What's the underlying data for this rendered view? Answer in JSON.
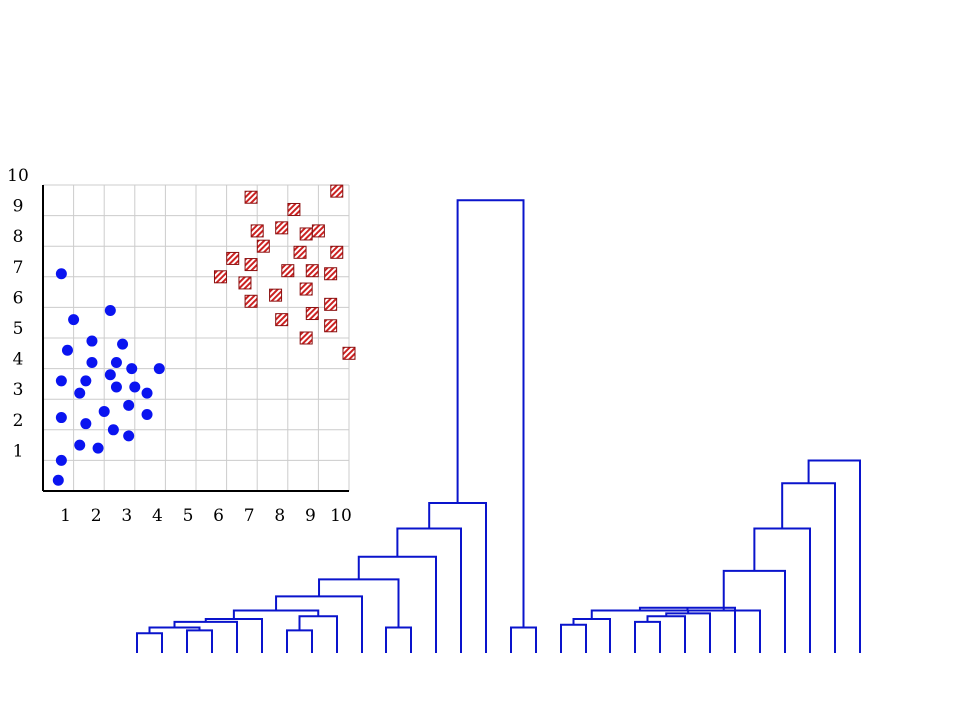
{
  "chart_data": [
    {
      "type": "scatter",
      "title": "",
      "xlabel": "",
      "ylabel": "",
      "xlim": [
        0,
        10
      ],
      "ylim": [
        0,
        10
      ],
      "grid": true,
      "x_ticks": [
        "1",
        "2",
        "3",
        "4",
        "5",
        "6",
        "7",
        "8",
        "9",
        "10"
      ],
      "y_ticks": [
        "1",
        "2",
        "3",
        "4",
        "5",
        "6",
        "7",
        "8",
        "9",
        "10"
      ],
      "series": [
        {
          "marker": "circle",
          "color": "#0a14f0",
          "points": [
            [
              0.5,
              0.35
            ],
            [
              0.6,
              1.0
            ],
            [
              1.2,
              1.5
            ],
            [
              1.8,
              1.4
            ],
            [
              0.6,
              2.4
            ],
            [
              1.4,
              2.2
            ],
            [
              2.0,
              2.6
            ],
            [
              2.3,
              2.0
            ],
            [
              2.8,
              1.8
            ],
            [
              0.6,
              3.6
            ],
            [
              1.2,
              3.2
            ],
            [
              1.4,
              3.6
            ],
            [
              1.6,
              4.2
            ],
            [
              0.8,
              4.6
            ],
            [
              1.6,
              4.9
            ],
            [
              2.2,
              3.8
            ],
            [
              2.4,
              3.4
            ],
            [
              2.4,
              4.2
            ],
            [
              2.8,
              2.8
            ],
            [
              3.0,
              3.4
            ],
            [
              3.4,
              3.2
            ],
            [
              3.4,
              2.5
            ],
            [
              2.9,
              4.0
            ],
            [
              3.8,
              4.0
            ],
            [
              2.6,
              4.8
            ],
            [
              1.0,
              5.6
            ],
            [
              2.2,
              5.9
            ],
            [
              0.6,
              7.1
            ]
          ]
        },
        {
          "marker": "hatched-square",
          "color": "#cc2222",
          "points": [
            [
              5.8,
              7.0
            ],
            [
              6.2,
              7.6
            ],
            [
              6.6,
              6.8
            ],
            [
              6.8,
              7.4
            ],
            [
              7.2,
              8.0
            ],
            [
              6.8,
              6.2
            ],
            [
              7.6,
              6.4
            ],
            [
              7.8,
              5.6
            ],
            [
              7.0,
              8.5
            ],
            [
              7.8,
              8.6
            ],
            [
              8.2,
              9.2
            ],
            [
              8.4,
              7.8
            ],
            [
              8.0,
              7.2
            ],
            [
              8.6,
              8.4
            ],
            [
              9.0,
              8.5
            ],
            [
              8.6,
              6.6
            ],
            [
              8.8,
              7.2
            ],
            [
              8.8,
              5.8
            ],
            [
              8.6,
              5.0
            ],
            [
              9.4,
              6.1
            ],
            [
              9.4,
              5.4
            ],
            [
              9.4,
              7.1
            ],
            [
              9.6,
              7.8
            ],
            [
              10.0,
              4.5
            ],
            [
              6.8,
              9.6
            ],
            [
              9.6,
              9.8
            ]
          ]
        }
      ]
    },
    {
      "type": "dendrogram",
      "title": "",
      "color": "#0a14cc",
      "leaves": 31,
      "heights": {
        "root": 8.0,
        "left": 1.8,
        "right": 1.95
      },
      "merges": [
        [
          0,
          1,
          0.35
        ],
        [
          2,
          3,
          0.4
        ],
        [
          31,
          32,
          0.45
        ],
        [
          4,
          33,
          0.55
        ],
        [
          5,
          34,
          0.6
        ],
        [
          6,
          7,
          0.4
        ],
        [
          8,
          36,
          0.65
        ],
        [
          37,
          35,
          0.75
        ],
        [
          38,
          9,
          1.0
        ],
        [
          10,
          11,
          0.45
        ],
        [
          40,
          39,
          1.3
        ],
        [
          41,
          12,
          1.7
        ],
        [
          42,
          13,
          2.2
        ],
        [
          43,
          14,
          2.65
        ],
        [
          15,
          16,
          0.45
        ],
        [
          17,
          18,
          0.5
        ],
        [
          46,
          19,
          0.6
        ],
        [
          20,
          21,
          0.55
        ],
        [
          22,
          48,
          0.65
        ],
        [
          23,
          49,
          0.7
        ],
        [
          47,
          50,
          0.75
        ],
        [
          51,
          24,
          0.8
        ],
        [
          52,
          25,
          0.75
        ],
        [
          53,
          26,
          1.45
        ],
        [
          54,
          27,
          2.2
        ],
        [
          55,
          28,
          3.0
        ],
        [
          56,
          29,
          3.4
        ],
        [
          44,
          45,
          8.0
        ]
      ]
    }
  ]
}
